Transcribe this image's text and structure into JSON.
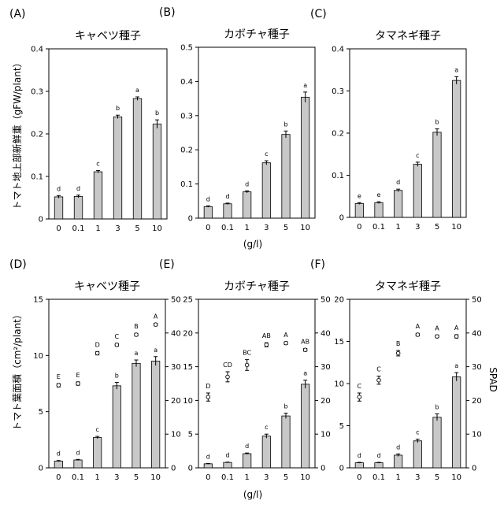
{
  "figure": {
    "xlabel_top": "(g/l)",
    "xlabel_bottom": "(g/l)",
    "ylabel_top": "トマト地上部新鮮重（gFW/plant）",
    "ylabel_bottom_left": "トマト葉面積（cm²/plant）",
    "ylabel_bottom_right": "SPAD"
  },
  "chart_data": [
    {
      "panel": "(A)",
      "title": "キャベツ種子",
      "type": "bar",
      "categories": [
        "0",
        "0.1",
        "1",
        "3",
        "5",
        "10"
      ],
      "values": [
        0.052,
        0.053,
        0.111,
        0.24,
        0.283,
        0.223
      ],
      "errors": [
        0.003,
        0.003,
        0.003,
        0.004,
        0.004,
        0.01
      ],
      "labels": [
        "d",
        "d",
        "c",
        "b",
        "a",
        "b"
      ],
      "ylim": [
        0,
        0.4
      ],
      "yticks": [
        "0",
        "0.1",
        "0.2",
        "0.3",
        "0.4"
      ]
    },
    {
      "panel": "(B)",
      "title": "カボチャ種子",
      "type": "bar",
      "categories": [
        "0",
        "0.1",
        "1",
        "3",
        "5",
        "10"
      ],
      "values": [
        0.034,
        0.042,
        0.077,
        0.162,
        0.245,
        0.354
      ],
      "errors": [
        0.002,
        0.002,
        0.003,
        0.006,
        0.01,
        0.015
      ],
      "labels": [
        "d",
        "d",
        "d",
        "c",
        "b",
        "a"
      ],
      "ylim": [
        0,
        0.5
      ],
      "yticks": [
        "0",
        "0.1",
        "0.2",
        "0.3",
        "0.4",
        "0.5"
      ]
    },
    {
      "panel": "(C)",
      "title": "タマネギ種子",
      "type": "bar",
      "categories": [
        "0",
        "0.1",
        "1",
        "3",
        "5",
        "10"
      ],
      "values": [
        0.033,
        0.035,
        0.064,
        0.126,
        0.202,
        0.325
      ],
      "errors": [
        0.002,
        0.002,
        0.003,
        0.005,
        0.008,
        0.009
      ],
      "labels": [
        "e",
        "e",
        "d",
        "c",
        "b",
        "a"
      ],
      "ylim": [
        0,
        0.4
      ],
      "yticks": [
        "0",
        "0.1",
        "0.2",
        "0.3",
        "0.4"
      ]
    },
    {
      "panel": "(D)",
      "title": "キャベツ種子",
      "type": "bar",
      "categories": [
        "0",
        "0.1",
        "1",
        "3",
        "5",
        "10"
      ],
      "values": [
        0.6,
        0.7,
        2.7,
        7.3,
        9.3,
        9.5
      ],
      "errors": [
        0.05,
        0.05,
        0.1,
        0.3,
        0.3,
        0.4
      ],
      "labels": [
        "d",
        "d",
        "c",
        "b",
        "a",
        "a"
      ],
      "ylim": [
        0,
        15
      ],
      "yticks": [
        "0",
        "5",
        "10",
        "15"
      ],
      "spad": [
        24.5,
        25.0,
        34.0,
        36.5,
        39.5,
        42.5
      ],
      "spad_errors": [
        0.5,
        0.5,
        0.5,
        0.4,
        0.4,
        0.4
      ],
      "spad_labels": [
        "E",
        "E",
        "D",
        "C",
        "B",
        "A"
      ],
      "y2lim": [
        0,
        50
      ],
      "y2ticks": [
        "0",
        "10",
        "20",
        "30",
        "40",
        "50"
      ]
    },
    {
      "panel": "(E)",
      "title": "カボチャ種子",
      "type": "bar",
      "categories": [
        "0",
        "0.1",
        "1",
        "3",
        "5",
        "10"
      ],
      "values": [
        0.6,
        0.8,
        2.1,
        4.7,
        7.7,
        12.4
      ],
      "errors": [
        0.05,
        0.05,
        0.1,
        0.3,
        0.4,
        0.6
      ],
      "labels": [
        "d",
        "d",
        "d",
        "c",
        "b",
        "a"
      ],
      "ylim": [
        0,
        25
      ],
      "yticks": [
        "0",
        "5",
        "10",
        "15",
        "20",
        "25"
      ],
      "spad": [
        21.0,
        27.0,
        30.5,
        36.5,
        37.0,
        35.0
      ],
      "spad_errors": [
        1.2,
        1.5,
        1.6,
        0.6,
        0.4,
        0.4
      ],
      "spad_labels": [
        "D",
        "CD",
        "BC",
        "AB",
        "A",
        "AB"
      ],
      "y2lim": [
        0,
        50
      ],
      "y2ticks": [
        "0",
        "10",
        "20",
        "30",
        "40",
        "50"
      ]
    },
    {
      "panel": "(F)",
      "title": "タマネギ種子",
      "type": "bar",
      "categories": [
        "0",
        "0.1",
        "1",
        "3",
        "5",
        "10"
      ],
      "values": [
        0.6,
        0.6,
        1.5,
        3.2,
        6.0,
        10.8
      ],
      "errors": [
        0.05,
        0.05,
        0.15,
        0.2,
        0.4,
        0.5
      ],
      "labels": [
        "d",
        "d",
        "d",
        "c",
        "b",
        "a"
      ],
      "ylim": [
        0,
        20
      ],
      "yticks": [
        "0",
        "5",
        "10",
        "15",
        "20"
      ],
      "spad": [
        21.0,
        26.0,
        34.0,
        39.5,
        39.0,
        39.0
      ],
      "spad_errors": [
        1.2,
        1.2,
        0.8,
        0.4,
        0.4,
        0.5
      ],
      "spad_labels": [
        "C",
        "C",
        "B",
        "A",
        "A",
        "A"
      ],
      "y2lim": [
        0,
        50
      ],
      "y2ticks": [
        "0",
        "10",
        "20",
        "30",
        "40",
        "50"
      ],
      "show_y2label": true
    }
  ]
}
